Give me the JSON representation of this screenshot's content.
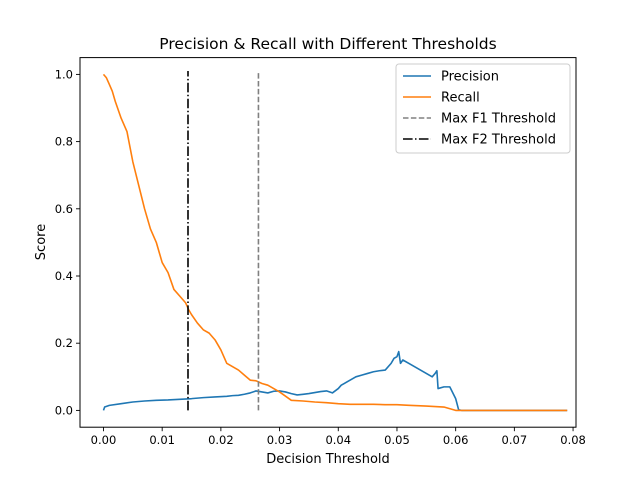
{
  "chart_data": {
    "type": "line",
    "title": "Precision & Recall with Different Thresholds",
    "xlabel": "Decision Threshold",
    "ylabel": "Score",
    "xlim": [
      -0.004,
      0.0805
    ],
    "ylim": [
      -0.05,
      1.05
    ],
    "xticks": [
      0.0,
      0.01,
      0.02,
      0.03,
      0.04,
      0.05,
      0.06,
      0.07,
      0.08
    ],
    "xtick_labels": [
      "0.00",
      "0.01",
      "0.02",
      "0.03",
      "0.04",
      "0.05",
      "0.06",
      "0.07",
      "0.08"
    ],
    "yticks": [
      0.0,
      0.2,
      0.4,
      0.6,
      0.8,
      1.0
    ],
    "ytick_labels": [
      "0.0",
      "0.2",
      "0.4",
      "0.6",
      "0.8",
      "1.0"
    ],
    "grid": false,
    "legend_position": "top-right",
    "series": [
      {
        "name": "Precision",
        "color": "#1f77b4",
        "style": "solid",
        "x": [
          0.0,
          0.0002,
          0.001,
          0.003,
          0.005,
          0.007,
          0.009,
          0.011,
          0.013,
          0.015,
          0.017,
          0.019,
          0.021,
          0.022,
          0.023,
          0.024,
          0.025,
          0.026,
          0.027,
          0.028,
          0.029,
          0.03,
          0.031,
          0.032,
          0.033,
          0.034,
          0.035,
          0.036,
          0.037,
          0.038,
          0.039,
          0.04,
          0.0405,
          0.041,
          0.042,
          0.043,
          0.044,
          0.045,
          0.046,
          0.047,
          0.048,
          0.049,
          0.0495,
          0.05,
          0.0503,
          0.0506,
          0.051,
          0.052,
          0.053,
          0.054,
          0.055,
          0.056,
          0.0565,
          0.0568,
          0.057,
          0.058,
          0.059,
          0.06,
          0.0605,
          0.061,
          0.063,
          0.065,
          0.07,
          0.075,
          0.079
        ],
        "y": [
          0.0,
          0.01,
          0.015,
          0.02,
          0.025,
          0.028,
          0.03,
          0.031,
          0.033,
          0.035,
          0.038,
          0.04,
          0.042,
          0.044,
          0.045,
          0.048,
          0.052,
          0.058,
          0.055,
          0.052,
          0.057,
          0.058,
          0.055,
          0.05,
          0.046,
          0.048,
          0.05,
          0.053,
          0.056,
          0.058,
          0.052,
          0.065,
          0.075,
          0.08,
          0.09,
          0.1,
          0.105,
          0.11,
          0.115,
          0.118,
          0.12,
          0.14,
          0.155,
          0.16,
          0.175,
          0.14,
          0.15,
          0.14,
          0.13,
          0.12,
          0.11,
          0.1,
          0.11,
          0.118,
          0.065,
          0.07,
          0.07,
          0.035,
          0.002,
          0.0,
          0.0,
          0.0,
          0.0,
          0.0,
          0.0
        ]
      },
      {
        "name": "Recall",
        "color": "#ff7f0e",
        "style": "solid",
        "x": [
          0.0,
          0.0005,
          0.001,
          0.0015,
          0.002,
          0.003,
          0.004,
          0.005,
          0.006,
          0.007,
          0.008,
          0.009,
          0.0095,
          0.01,
          0.011,
          0.012,
          0.013,
          0.014,
          0.0145,
          0.015,
          0.016,
          0.017,
          0.018,
          0.019,
          0.02,
          0.021,
          0.022,
          0.023,
          0.024,
          0.025,
          0.026,
          0.027,
          0.028,
          0.03,
          0.032,
          0.034,
          0.036,
          0.038,
          0.04,
          0.042,
          0.044,
          0.046,
          0.048,
          0.05,
          0.052,
          0.055,
          0.058,
          0.06,
          0.065,
          0.07,
          0.075,
          0.079
        ],
        "y": [
          1.0,
          0.99,
          0.97,
          0.95,
          0.92,
          0.87,
          0.83,
          0.74,
          0.67,
          0.6,
          0.54,
          0.5,
          0.47,
          0.44,
          0.41,
          0.36,
          0.34,
          0.32,
          0.3,
          0.285,
          0.26,
          0.24,
          0.23,
          0.21,
          0.18,
          0.14,
          0.13,
          0.12,
          0.105,
          0.09,
          0.088,
          0.08,
          0.075,
          0.055,
          0.03,
          0.028,
          0.025,
          0.023,
          0.02,
          0.018,
          0.018,
          0.018,
          0.017,
          0.017,
          0.015,
          0.013,
          0.01,
          0.0,
          0.0,
          0.0,
          0.0,
          0.0
        ]
      },
      {
        "name": "Max F1 Threshold",
        "color": "#808080",
        "style": "dashed",
        "x": [
          0.0264,
          0.0264
        ],
        "y": [
          0.0,
          1.01
        ]
      },
      {
        "name": "Max F2 Threshold",
        "color": "#000000",
        "style": "dashdot",
        "x": [
          0.0144,
          0.0144
        ],
        "y": [
          0.0,
          1.01
        ]
      }
    ]
  }
}
